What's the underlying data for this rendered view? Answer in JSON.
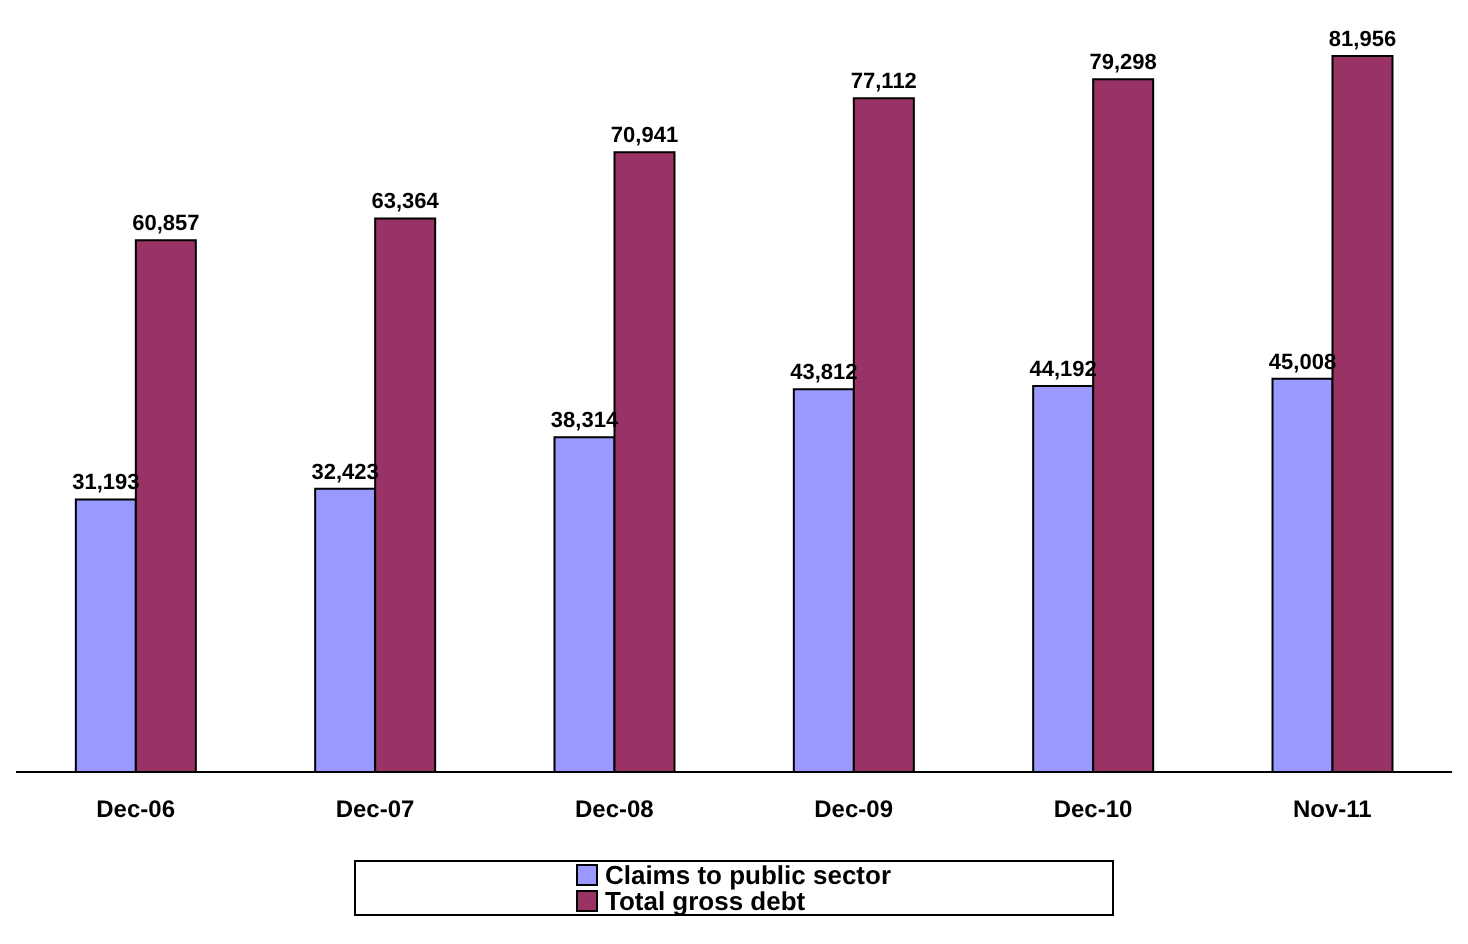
{
  "chart_data": {
    "type": "bar",
    "categories": [
      "Dec-06",
      "Dec-07",
      "Dec-08",
      "Dec-09",
      "Dec-10",
      "Nov-11"
    ],
    "series": [
      {
        "name": "Claims to public sector",
        "color": "#9999ff",
        "values": [
          31193,
          32423,
          38314,
          43812,
          44192,
          45008
        ],
        "value_labels": [
          "31,193",
          "32,423",
          "38,314",
          "43,812",
          "44,192",
          "45,008"
        ]
      },
      {
        "name": "Total gross debt",
        "color": "#993366",
        "values": [
          60857,
          63364,
          70941,
          77112,
          79298,
          81956
        ],
        "value_labels": [
          "60,857",
          "63,364",
          "70,941",
          "77,112",
          "79,298",
          "81,956"
        ]
      }
    ],
    "legend": "bottom"
  }
}
